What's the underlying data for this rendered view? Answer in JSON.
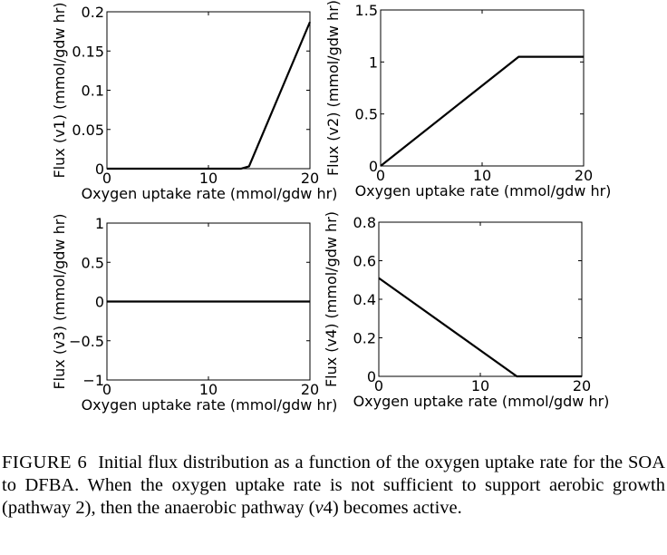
{
  "chart_data": [
    {
      "type": "line",
      "xlabel": "Oxygen uptake rate (mmol/gdw hr)",
      "ylabel": "Flux (v1) (mmol/gdw hr)",
      "xlim": [
        0,
        20
      ],
      "ylim": [
        0,
        0.2
      ],
      "xticks": [
        {
          "v": 0,
          "label": "0"
        },
        {
          "v": 10,
          "label": "10"
        },
        {
          "v": 20,
          "label": "20"
        }
      ],
      "yticks": [
        {
          "v": 0,
          "label": "0"
        },
        {
          "v": 0.05,
          "label": "0.05"
        },
        {
          "v": 0.1,
          "label": "0.1"
        },
        {
          "v": 0.15,
          "label": "0.15"
        },
        {
          "v": 0.2,
          "label": "0.2"
        }
      ],
      "series": [
        {
          "x": [
            0,
            13.2,
            14,
            20
          ],
          "y": [
            0,
            0,
            0.003,
            0.187
          ]
        }
      ],
      "grid": false
    },
    {
      "type": "line",
      "xlabel": "Oxygen uptake rate (mmol/gdw hr)",
      "ylabel": "Flux (v2) (mmol/gdw hr)",
      "xlim": [
        0,
        20
      ],
      "ylim": [
        0,
        1.5
      ],
      "xticks": [
        {
          "v": 0,
          "label": "0"
        },
        {
          "v": 10,
          "label": "10"
        },
        {
          "v": 20,
          "label": "20"
        }
      ],
      "yticks": [
        {
          "v": 0,
          "label": "0"
        },
        {
          "v": 0.5,
          "label": "0.5"
        },
        {
          "v": 1,
          "label": "1"
        },
        {
          "v": 1.5,
          "label": "1.5"
        }
      ],
      "series": [
        {
          "x": [
            0,
            13.6,
            20
          ],
          "y": [
            0,
            1.05,
            1.05
          ]
        }
      ],
      "grid": false
    },
    {
      "type": "line",
      "xlabel": "Oxygen uptake rate (mmol/gdw hr)",
      "ylabel": "Flux (v3) (mmol/gdw hr)",
      "xlim": [
        0,
        20
      ],
      "ylim": [
        -1,
        1
      ],
      "xticks": [
        {
          "v": 0,
          "label": "0"
        },
        {
          "v": 10,
          "label": "10"
        },
        {
          "v": 20,
          "label": "20"
        }
      ],
      "yticks": [
        {
          "v": -1,
          "label": "−1"
        },
        {
          "v": -0.5,
          "label": "−0.5"
        },
        {
          "v": 0,
          "label": "0"
        },
        {
          "v": 0.5,
          "label": "0.5"
        },
        {
          "v": 1,
          "label": "1"
        }
      ],
      "series": [
        {
          "x": [
            0,
            20
          ],
          "y": [
            0,
            0
          ]
        }
      ],
      "grid": false
    },
    {
      "type": "line",
      "xlabel": "Oxygen uptake rate (mmol/gdw hr)",
      "ylabel": "Flux (v4) (mmol/gdw hr)",
      "xlim": [
        0,
        20
      ],
      "ylim": [
        0,
        0.8
      ],
      "xticks": [
        {
          "v": 0,
          "label": "0"
        },
        {
          "v": 10,
          "label": "10"
        },
        {
          "v": 20,
          "label": "20"
        }
      ],
      "yticks": [
        {
          "v": 0,
          "label": "0"
        },
        {
          "v": 0.2,
          "label": "0.2"
        },
        {
          "v": 0.4,
          "label": "0.4"
        },
        {
          "v": 0.6,
          "label": "0.6"
        },
        {
          "v": 0.8,
          "label": "0.8"
        }
      ],
      "series": [
        {
          "x": [
            0,
            13.6,
            20
          ],
          "y": [
            0.51,
            0,
            0
          ]
        }
      ],
      "grid": false
    }
  ],
  "caption": {
    "label": "FIGURE 6",
    "text_before": "Initial flux distribution as a function of the oxygen uptake rate for the SOA to DFBA. When the oxygen uptake rate is not sufficient to support aerobic growth (pathway 2), then the anaerobic pathway (",
    "italic": "v",
    "text_after": "4) becomes active."
  }
}
